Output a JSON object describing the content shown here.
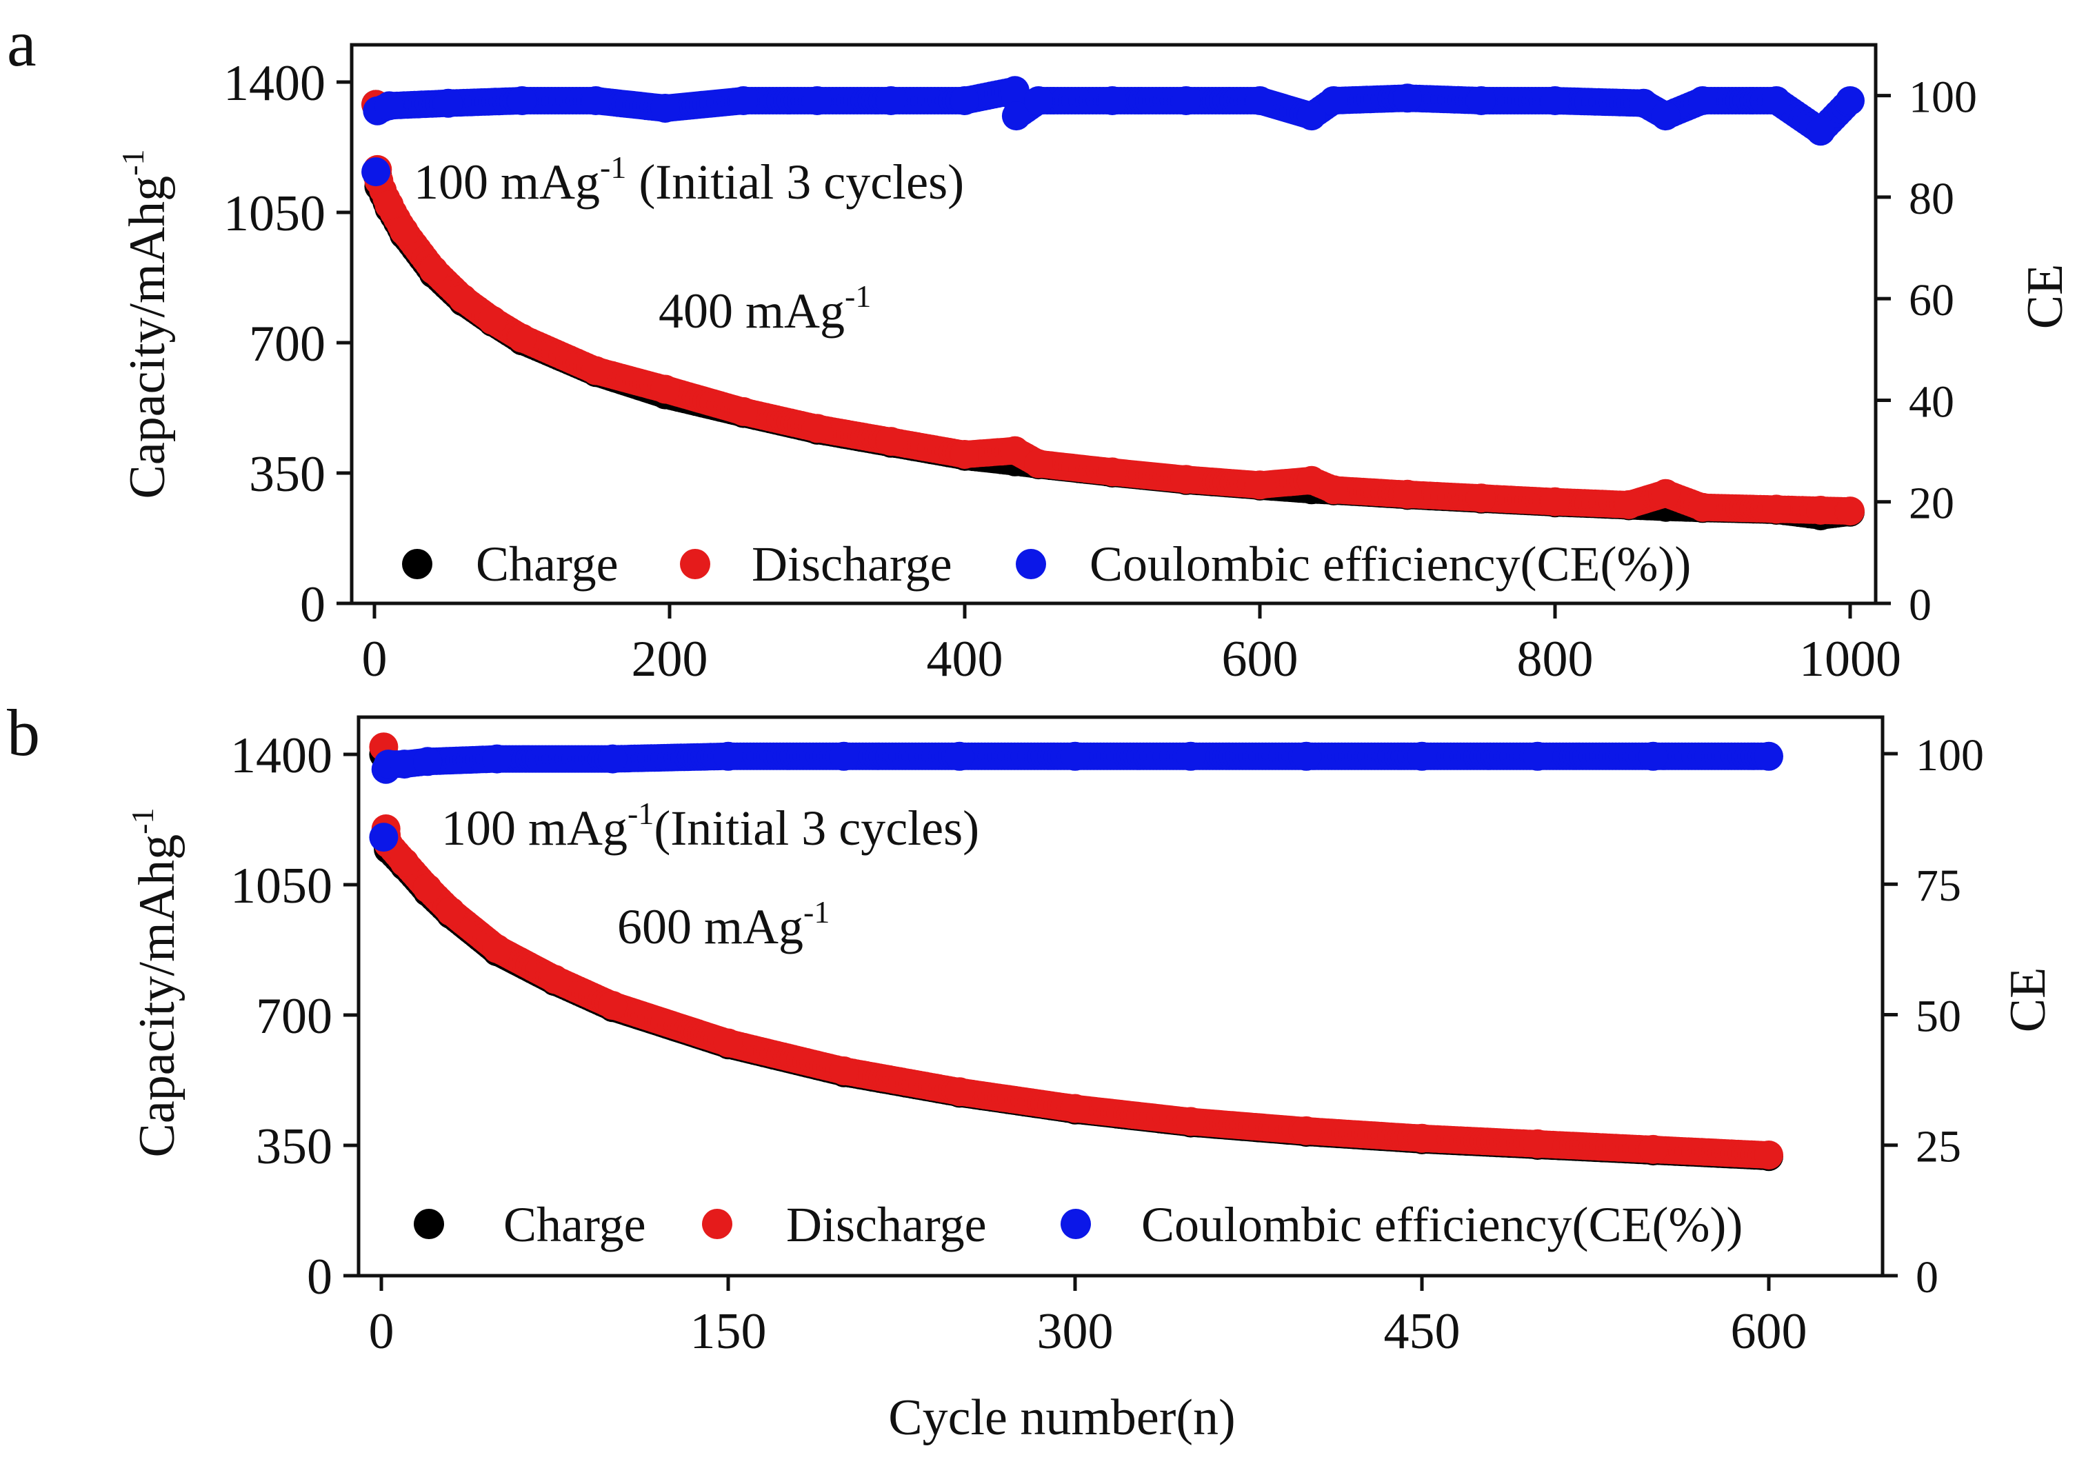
{
  "chart_data": [
    {
      "panel": "a",
      "type": "scatter",
      "xlabel": "",
      "ylabel": "Capacity/mAhg",
      "ylabel_superscript": "-1",
      "y2label": "CE",
      "xlim": [
        0,
        1000
      ],
      "ylim": [
        0,
        1500
      ],
      "y2lim": [
        0,
        110
      ],
      "x_ticks": [
        0,
        200,
        400,
        600,
        800,
        1000
      ],
      "x_tick_labels": [
        "0",
        "200",
        "400",
        "600",
        "800",
        "1000"
      ],
      "y_ticks": [
        0,
        350,
        700,
        1050,
        1400
      ],
      "y_tick_labels": [
        "0",
        "350",
        "700",
        "1050",
        "1400"
      ],
      "y2_ticks": [
        0,
        20,
        40,
        60,
        80,
        100
      ],
      "y2_tick_labels": [
        "0",
        "20",
        "40",
        "60",
        "80",
        "100"
      ],
      "annotations": [
        {
          "text": "100 mAg",
          "sup": "-1",
          "tail": " (Initial 3 cycles)"
        },
        {
          "text": "400 mAg",
          "sup": "-1",
          "tail": ""
        }
      ],
      "legend": [
        "Charge",
        "Discharge",
        "Coulombic efficiency(CE(%))"
      ],
      "legend_position": "bottom",
      "series": [
        {
          "name": "Charge",
          "color": "#000000",
          "axis": "left",
          "x": [
            1,
            2,
            3,
            10,
            20,
            40,
            60,
            80,
            100,
            150,
            197,
            250,
            300,
            350,
            400,
            434,
            450,
            500,
            550,
            600,
            635,
            650,
            700,
            750,
            800,
            850,
            875,
            900,
            950,
            980,
            1000
          ],
          "values": [
            1340,
            1150,
            1120,
            1060,
            990,
            885,
            810,
            755,
            705,
            620,
            560,
            510,
            465,
            430,
            395,
            380,
            372,
            350,
            330,
            315,
            305,
            302,
            290,
            280,
            270,
            262,
            258,
            255,
            250,
            235,
            245
          ]
        },
        {
          "name": "Discharge",
          "color": "#e51b1b",
          "axis": "left",
          "x": [
            1,
            2,
            3,
            10,
            20,
            40,
            60,
            80,
            100,
            150,
            197,
            250,
            300,
            350,
            400,
            434,
            450,
            500,
            550,
            600,
            635,
            650,
            700,
            750,
            800,
            850,
            875,
            900,
            950,
            980,
            1000
          ],
          "values": [
            1340,
            1165,
            1135,
            1070,
            1000,
            895,
            818,
            760,
            712,
            625,
            575,
            515,
            470,
            435,
            400,
            410,
            375,
            353,
            333,
            318,
            330,
            305,
            293,
            283,
            273,
            265,
            295,
            258,
            253,
            250,
            248
          ]
        },
        {
          "name": "Coulombic efficiency(CE(%))",
          "color": "#0b17e8",
          "axis": "right",
          "x": [
            1,
            2,
            10,
            50,
            100,
            150,
            197,
            250,
            300,
            350,
            400,
            434,
            435,
            450,
            500,
            550,
            600,
            635,
            650,
            700,
            750,
            800,
            860,
            875,
            900,
            950,
            980,
            1000
          ],
          "values": [
            85,
            97,
            98,
            98.5,
            99,
            99,
            97.5,
            99,
            99,
            99,
            99,
            101,
            96,
            99,
            99,
            99,
            99,
            96,
            99,
            99.5,
            99,
            99,
            98.5,
            96,
            99,
            99,
            93,
            99
          ]
        }
      ]
    },
    {
      "panel": "b",
      "type": "scatter",
      "xlabel": "Cycle number(n)",
      "ylabel": "Capacity/mAhg",
      "ylabel_superscript": "-1",
      "y2label": "CE",
      "xlim": [
        0,
        650
      ],
      "ylim": [
        0,
        1500
      ],
      "y2lim": [
        0,
        107
      ],
      "x_ticks": [
        0,
        150,
        300,
        450,
        600
      ],
      "x_tick_labels": [
        "0",
        "150",
        "300",
        "450",
        "600"
      ],
      "y_ticks": [
        0,
        350,
        700,
        1050,
        1400
      ],
      "y_tick_labels": [
        "0",
        "350",
        "700",
        "1050",
        "1400"
      ],
      "y2_ticks": [
        0,
        25,
        50,
        75,
        100
      ],
      "y2_tick_labels": [
        "0",
        "25",
        "50",
        "75",
        "100"
      ],
      "annotations": [
        {
          "text": "100 mAg",
          "sup": "-1",
          "tail": "(Initial 3 cycles)"
        },
        {
          "text": "600 mAg",
          "sup": "-1",
          "tail": ""
        }
      ],
      "legend": [
        "Charge",
        "Discharge",
        "Coulombic efficiency(CE(%))"
      ],
      "legend_position": "bottom",
      "series": [
        {
          "name": "Charge",
          "color": "#000000",
          "axis": "left",
          "x": [
            1,
            2,
            3,
            10,
            20,
            30,
            50,
            75,
            100,
            150,
            200,
            250,
            300,
            350,
            400,
            450,
            500,
            550,
            600
          ],
          "values": [
            1400,
            1170,
            1145,
            1100,
            1030,
            970,
            870,
            790,
            720,
            620,
            545,
            490,
            445,
            410,
            385,
            365,
            350,
            335,
            320
          ]
        },
        {
          "name": "Discharge",
          "color": "#e51b1b",
          "axis": "left",
          "x": [
            1,
            2,
            3,
            10,
            20,
            30,
            50,
            75,
            100,
            150,
            200,
            250,
            300,
            350,
            400,
            450,
            500,
            550,
            600
          ],
          "values": [
            1420,
            1200,
            1160,
            1110,
            1040,
            978,
            878,
            796,
            726,
            625,
            550,
            494,
            449,
            414,
            389,
            369,
            354,
            339,
            324
          ]
        },
        {
          "name": "Coulombic efficiency(CE(%))",
          "color": "#0b17e8",
          "axis": "right",
          "x": [
            1,
            2,
            3,
            10,
            20,
            50,
            100,
            150,
            200,
            250,
            300,
            350,
            400,
            450,
            500,
            550,
            600
          ],
          "values": [
            84,
            97,
            98,
            98,
            98.5,
            99,
            99,
            99.5,
            99.5,
            99.5,
            99.5,
            99.5,
            99.5,
            99.5,
            99.5,
            99.5,
            99.5
          ]
        }
      ]
    }
  ]
}
